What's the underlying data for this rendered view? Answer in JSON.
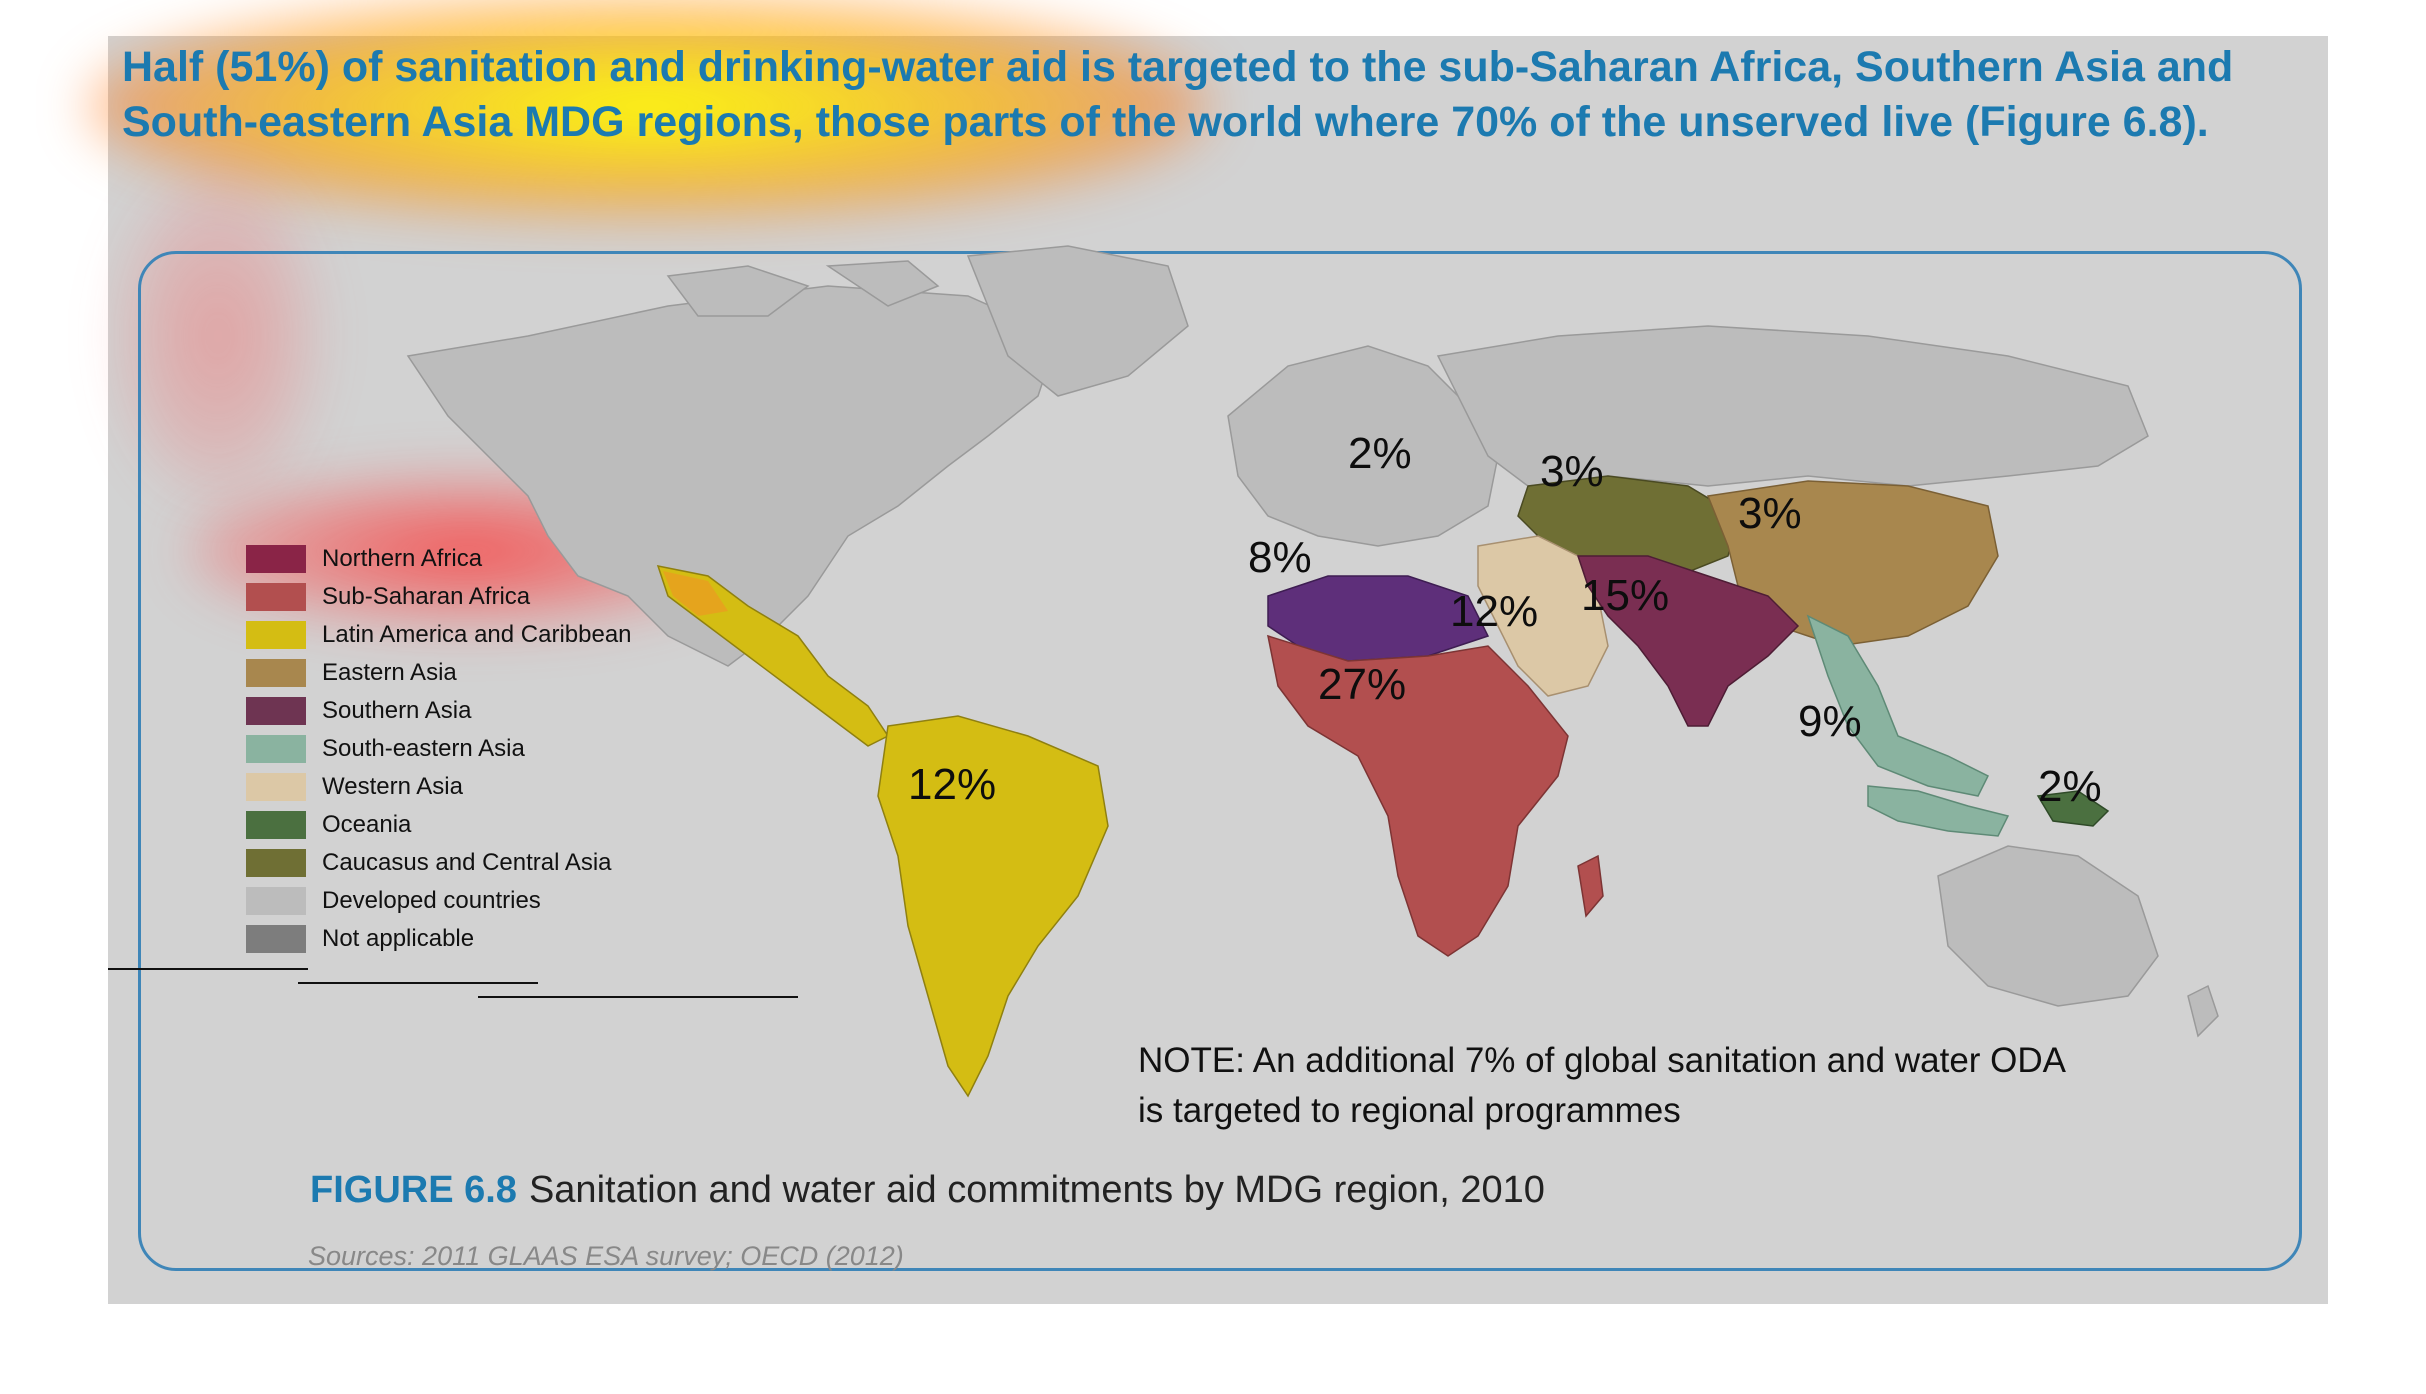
{
  "headline": "Half (51%) of sanitation and drinking-water aid is targeted to the sub-Saharan Africa, Southern Asia and South-eastern Asia MDG regions, those parts of the world where 70% of the unserved live (Figure 6.8).",
  "legend": [
    {
      "label": "Northern Africa",
      "color": "#8a2447"
    },
    {
      "label": "Sub-Saharan Africa",
      "color": "#b24f4f"
    },
    {
      "label": "Latin America and Caribbean",
      "color": "#d4bd13"
    },
    {
      "label": "Eastern Asia",
      "color": "#a8874e"
    },
    {
      "label": "Southern Asia",
      "color": "#6e3452"
    },
    {
      "label": "South-eastern Asia",
      "color": "#8ab3a0"
    },
    {
      "label": "Western Asia",
      "color": "#dcc8a6"
    },
    {
      "label": "Oceania",
      "color": "#4b7040"
    },
    {
      "label": "Caucasus and Central Asia",
      "color": "#6f6f34"
    },
    {
      "label": "Developed countries",
      "color": "#bcbcbc"
    },
    {
      "label": "Not applicable",
      "color": "#7d7d7d"
    }
  ],
  "region_labels": {
    "developed_europe": "2%",
    "caucasus_central_asia": "3%",
    "eastern_asia": "3%",
    "northern_africa": "8%",
    "western_asia": "12%",
    "southern_asia": "15%",
    "sub_saharan_africa": "27%",
    "latin_america": "12%",
    "south_eastern_asia": "9%",
    "oceania": "2%"
  },
  "region_colors": {
    "northern_africa_map": "#5e2f7a",
    "southern_asia_map": "#7a2e52"
  },
  "note": {
    "line1": "NOTE: An additional 7% of global sanitation and water ODA",
    "line2": "is targeted to regional programmes"
  },
  "caption": {
    "figure": "FIGURE 6.8",
    "text": "Sanitation and water aid commitments by MDG region, 2010"
  },
  "sources": "Sources: 2011 GLAAS ESA survey; OECD (2012)"
}
